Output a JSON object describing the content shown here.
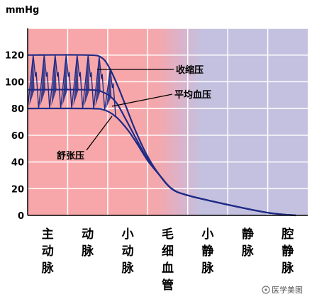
{
  "unit_label": "mmHg",
  "colors": {
    "arterial": "#f7a7aa",
    "capillary_mid": "#d9b3cc",
    "venous": "#c3c1df",
    "curve": "#1f2b86",
    "grid": "#ffffff"
  },
  "chart_data": {
    "type": "line",
    "title": "",
    "ylabel": "mmHg",
    "ylim": [
      0,
      140
    ],
    "yticks": [
      0,
      20,
      40,
      60,
      80,
      100,
      120
    ],
    "grid": true,
    "categories": [
      [
        "主",
        "动",
        "脉"
      ],
      [
        "动",
        "脉"
      ],
      [
        "小",
        "动",
        "脉"
      ],
      [
        "毛",
        "细",
        "血",
        "管"
      ],
      [
        "小",
        "静",
        "脉"
      ],
      [
        "静",
        "脉"
      ],
      [
        "腔",
        "静",
        "脉"
      ]
    ],
    "series": [
      {
        "name": "收缩压",
        "points": [
          [
            0.0,
            120
          ],
          [
            1.5,
            120
          ],
          [
            1.85,
            118
          ],
          [
            2.05,
            110
          ],
          [
            2.25,
            97
          ],
          [
            2.45,
            82
          ],
          [
            2.7,
            63
          ],
          [
            3.0,
            44
          ],
          [
            3.3,
            30
          ],
          [
            3.6,
            20
          ],
          [
            4.0,
            15
          ],
          [
            5.0,
            8
          ],
          [
            6.0,
            2
          ],
          [
            6.7,
            0
          ]
        ]
      },
      {
        "name": "平均血压",
        "points": [
          [
            0.0,
            94
          ],
          [
            1.5,
            94
          ],
          [
            1.9,
            92
          ],
          [
            2.2,
            85
          ],
          [
            2.45,
            72
          ],
          [
            2.7,
            58
          ],
          [
            3.0,
            42
          ],
          [
            3.3,
            30
          ],
          [
            3.6,
            20
          ],
          [
            4.0,
            15
          ],
          [
            5.0,
            8
          ],
          [
            6.0,
            2
          ],
          [
            6.7,
            0
          ]
        ]
      },
      {
        "name": "舒张压",
        "points": [
          [
            0.0,
            80
          ],
          [
            1.5,
            80
          ],
          [
            1.9,
            79
          ],
          [
            2.2,
            74
          ],
          [
            2.5,
            64
          ],
          [
            2.75,
            53
          ],
          [
            3.0,
            41
          ],
          [
            3.3,
            30
          ],
          [
            3.6,
            20
          ],
          [
            4.0,
            15
          ],
          [
            5.0,
            8
          ],
          [
            6.0,
            2
          ],
          [
            6.7,
            0
          ]
        ]
      }
    ],
    "pulse_cycles": 8,
    "annotations": [
      {
        "text": "收缩压"
      },
      {
        "text": "平均血压"
      },
      {
        "text": "舒张压"
      }
    ]
  },
  "watermark": "医学美图"
}
